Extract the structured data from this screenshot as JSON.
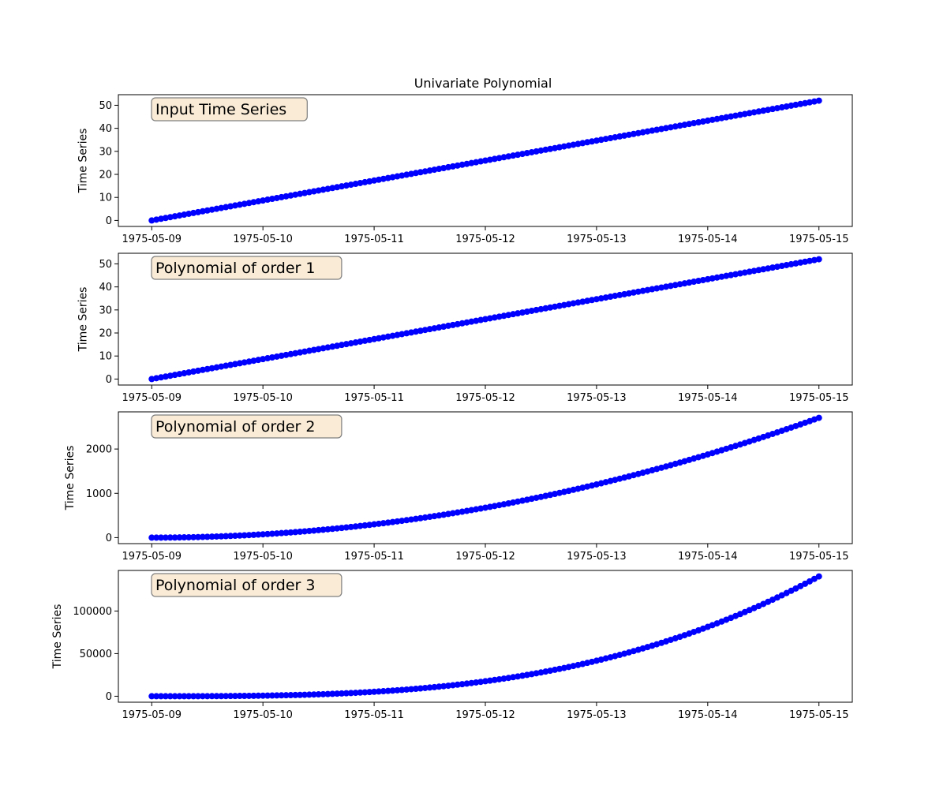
{
  "chart_data": {
    "title": "Univariate Polynomial",
    "panels": [
      {
        "type": "scatter",
        "annotation": "Input Time Series",
        "ylabel": "Time Series",
        "x": {
          "start": "1975-05-09",
          "end": "1975-05-15"
        },
        "xticks": [
          "1975-05-09",
          "1975-05-10",
          "1975-05-11",
          "1975-05-12",
          "1975-05-13",
          "1975-05-14",
          "1975-05-15"
        ],
        "yticks": [
          0,
          10,
          20,
          30,
          40,
          50
        ],
        "ylim": [
          -2.6,
          54.6
        ],
        "y_at_start": 0,
        "y_at_end": 52,
        "order": 1
      },
      {
        "type": "scatter",
        "annotation": "Polynomial of order 1",
        "ylabel": "Time Series",
        "x": {
          "start": "1975-05-09",
          "end": "1975-05-15"
        },
        "xticks": [
          "1975-05-09",
          "1975-05-10",
          "1975-05-11",
          "1975-05-12",
          "1975-05-13",
          "1975-05-14",
          "1975-05-15"
        ],
        "yticks": [
          0,
          10,
          20,
          30,
          40,
          50
        ],
        "ylim": [
          -2.6,
          54.6
        ],
        "y_at_start": 0,
        "y_at_end": 52,
        "order": 1
      },
      {
        "type": "scatter",
        "annotation": "Polynomial of order 2",
        "ylabel": "Time Series",
        "x": {
          "start": "1975-05-09",
          "end": "1975-05-15"
        },
        "xticks": [
          "1975-05-09",
          "1975-05-10",
          "1975-05-11",
          "1975-05-12",
          "1975-05-13",
          "1975-05-14",
          "1975-05-15"
        ],
        "yticks": [
          0,
          1000,
          2000
        ],
        "ylim": [
          -135,
          2839
        ],
        "y_at_start": 0,
        "y_at_end": 2704,
        "order": 2
      },
      {
        "type": "scatter",
        "annotation": "Polynomial of order 3",
        "ylabel": "Time Series",
        "x": {
          "start": "1975-05-09",
          "end": "1975-05-15"
        },
        "xticks": [
          "1975-05-09",
          "1975-05-10",
          "1975-05-11",
          "1975-05-12",
          "1975-05-13",
          "1975-05-14",
          "1975-05-15"
        ],
        "yticks": [
          0,
          50000,
          100000
        ],
        "ylim": [
          -7030,
          147638
        ],
        "y_at_start": 0,
        "y_at_end": 140608,
        "order": 3
      }
    ]
  },
  "colors": {
    "marker": "#0000ff",
    "annotation_fill": "#f9ebd6",
    "annotation_edge": "#7f7f7f"
  }
}
